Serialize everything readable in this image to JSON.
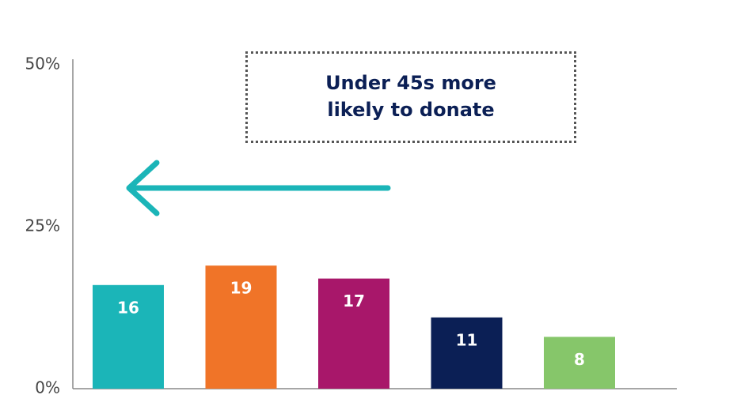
{
  "chart_data": {
    "type": "bar",
    "annotation": "Under 45s more likely to donate",
    "categories": [
      null,
      null,
      null,
      null,
      null
    ],
    "values": [
      16,
      19,
      17,
      11,
      8
    ],
    "colors": [
      "#1bb5b8",
      "#f07428",
      "#a8176a",
      "#0b1f55",
      "#86c66a"
    ],
    "ylim": [
      0,
      50
    ],
    "yticks": [
      {
        "value": 0,
        "label": "0%"
      },
      {
        "value": 25,
        "label": "25%"
      },
      {
        "value": 50,
        "label": "50%"
      }
    ],
    "grid": false
  }
}
